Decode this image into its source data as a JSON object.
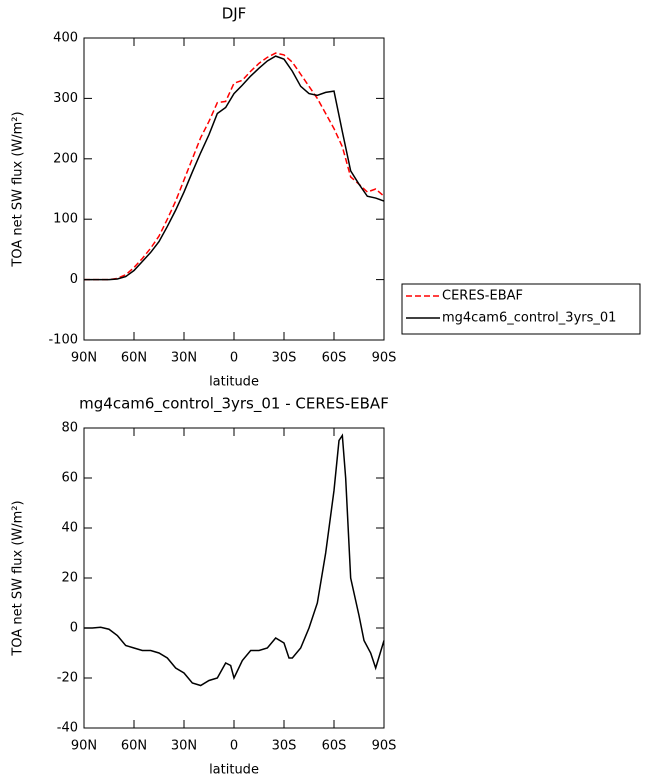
{
  "chart_data": [
    {
      "type": "line",
      "title": "DJF",
      "x_label": "latitude",
      "y_label": "TOA net SW flux (W/m²)",
      "x": [
        90,
        85,
        80,
        75,
        70,
        65,
        60,
        55,
        50,
        45,
        40,
        35,
        30,
        25,
        20,
        15,
        10,
        5,
        0,
        -5,
        -10,
        -15,
        -20,
        -25,
        -30,
        -35,
        -40,
        -45,
        -50,
        -55,
        -60,
        -65,
        -70,
        -75,
        -80,
        -85,
        -90
      ],
      "series": [
        {
          "name": "CERES-EBAF",
          "color": "#ff0000",
          "linestyle": "dashed",
          "values": [
            0,
            0,
            0,
            0,
            2,
            8,
            20,
            35,
            52,
            72,
            100,
            130,
            165,
            200,
            235,
            262,
            293,
            295,
            325,
            330,
            345,
            358,
            368,
            375,
            372,
            360,
            340,
            320,
            300,
            275,
            250,
            220,
            170,
            158,
            145,
            150,
            138
          ]
        },
        {
          "name": "mg4cam6_control_3yrs_01",
          "color": "#000000",
          "linestyle": "solid",
          "values": [
            0,
            0,
            0,
            0,
            1,
            5,
            15,
            30,
            45,
            63,
            88,
            115,
            145,
            178,
            210,
            240,
            275,
            285,
            308,
            322,
            337,
            350,
            362,
            370,
            365,
            345,
            320,
            308,
            305,
            310,
            312,
            245,
            180,
            158,
            138,
            135,
            130
          ]
        }
      ],
      "xlim": [
        90,
        -90
      ],
      "xticks": [
        {
          "value": 90,
          "label": "90N"
        },
        {
          "value": 60,
          "label": "60N"
        },
        {
          "value": 30,
          "label": "30N"
        },
        0,
        {
          "value": -30,
          "label": "30S"
        },
        {
          "value": -60,
          "label": "60S"
        },
        {
          "value": -90,
          "label": "90S"
        }
      ],
      "ylim": [
        -100,
        400
      ],
      "yticks": [
        -100,
        0,
        100,
        200,
        300,
        400
      ]
    },
    {
      "type": "line",
      "title": "mg4cam6_control_3yrs_01 - CERES-EBAF",
      "x_label": "latitude",
      "y_label": "TOA net SW flux (W/m²)",
      "x": [
        90,
        85,
        80,
        75,
        70,
        65,
        60,
        55,
        50,
        45,
        40,
        35,
        30,
        25,
        20,
        15,
        10,
        5,
        2,
        0,
        -5,
        -10,
        -15,
        -20,
        -25,
        -30,
        -33,
        -35,
        -40,
        -45,
        -50,
        -55,
        -60,
        -63,
        -65,
        -67,
        -70,
        -75,
        -78,
        -82,
        -85,
        -90
      ],
      "series": [
        {
          "name": "mg4cam6_control_3yrs_01 - CERES-EBAF",
          "color": "#000000",
          "linestyle": "solid",
          "values": [
            0,
            0,
            0.3,
            -0.5,
            -3,
            -7,
            -8,
            -9,
            -9,
            -10,
            -12,
            -16,
            -18,
            -22,
            -23,
            -21,
            -20,
            -14,
            -15,
            -20,
            -13,
            -9,
            -9,
            -8,
            -4,
            -6,
            -12,
            -12,
            -8,
            0,
            10,
            30,
            55,
            75,
            77,
            60,
            20,
            5,
            -5,
            -10,
            -16,
            -5
          ]
        }
      ],
      "legend": false,
      "xlim": [
        90,
        -90
      ],
      "xticks": [
        {
          "value": 90,
          "label": "90N"
        },
        {
          "value": 60,
          "label": "60N"
        },
        {
          "value": 30,
          "label": "30N"
        },
        0,
        {
          "value": -30,
          "label": "30S"
        },
        {
          "value": -60,
          "label": "60S"
        },
        {
          "value": -90,
          "label": "90S"
        }
      ],
      "ylim": [
        -40,
        80
      ],
      "yticks": [
        -40,
        -20,
        0,
        20,
        40,
        60,
        80
      ]
    }
  ]
}
